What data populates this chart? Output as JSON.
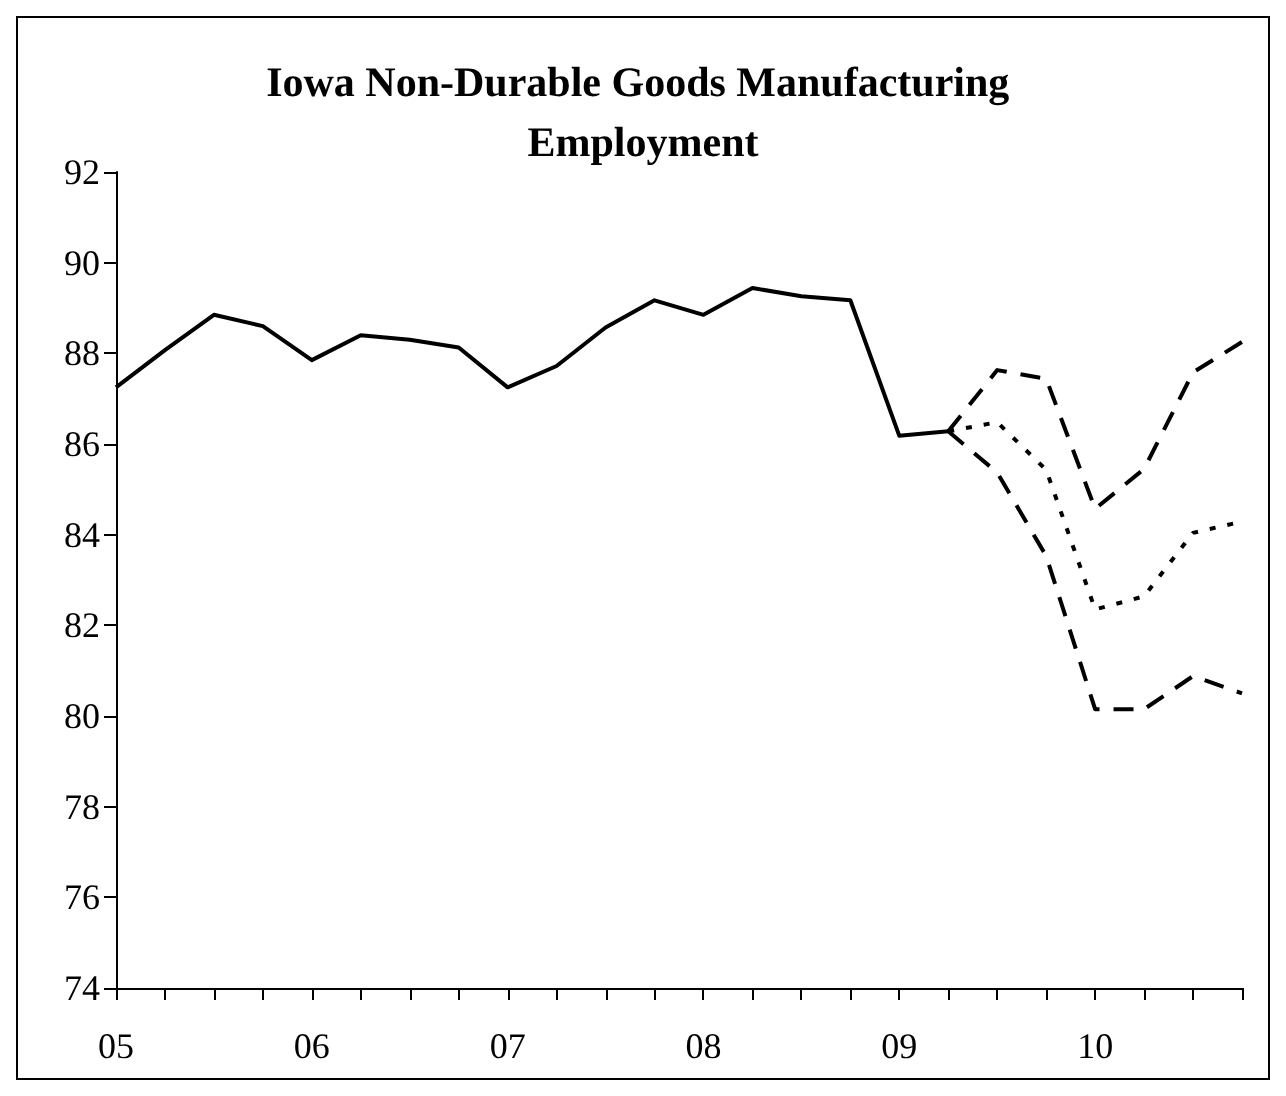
{
  "chart_data": {
    "type": "line",
    "title": "Iowa Non-Durable Goods Manufacturing Employment",
    "categories": [
      "05",
      null,
      null,
      null,
      "06",
      null,
      null,
      null,
      "07",
      null,
      null,
      null,
      "08",
      null,
      null,
      null,
      "09",
      null,
      null,
      null,
      "10",
      null,
      null,
      null
    ],
    "ylim": [
      74,
      92
    ],
    "yticks": [
      74,
      76,
      78,
      80,
      82,
      84,
      86,
      88,
      90,
      92
    ],
    "grid": false,
    "marker": "none",
    "series": [
      {
        "color": "#000000",
        "line_style": "solid",
        "values": [
          87.25,
          88.07,
          88.85,
          88.6,
          87.85,
          88.4,
          88.3,
          88.13,
          87.25,
          87.72,
          88.57,
          89.17,
          88.85,
          89.44,
          89.26,
          89.17,
          86.18,
          86.28,
          null,
          null,
          null,
          null,
          null,
          null
        ]
      },
      {
        "color": "#000000",
        "line_style": "dashed",
        "values": [
          null,
          null,
          null,
          null,
          null,
          null,
          null,
          null,
          null,
          null,
          null,
          null,
          null,
          null,
          null,
          null,
          null,
          86.28,
          87.63,
          87.44,
          84.57,
          85.45,
          87.58,
          88.25
        ]
      },
      {
        "color": "#000000",
        "line_style": "dotted",
        "values": [
          null,
          null,
          null,
          null,
          null,
          null,
          null,
          null,
          null,
          null,
          null,
          null,
          null,
          null,
          null,
          null,
          null,
          86.28,
          86.48,
          85.43,
          82.35,
          82.64,
          84.04,
          84.29
        ]
      },
      {
        "color": "#000000",
        "line_style": "dashed",
        "values": [
          null,
          null,
          null,
          null,
          null,
          null,
          null,
          null,
          null,
          null,
          null,
          null,
          null,
          null,
          null,
          null,
          null,
          86.28,
          85.37,
          83.53,
          80.15,
          80.15,
          80.88,
          80.5
        ]
      }
    ]
  }
}
